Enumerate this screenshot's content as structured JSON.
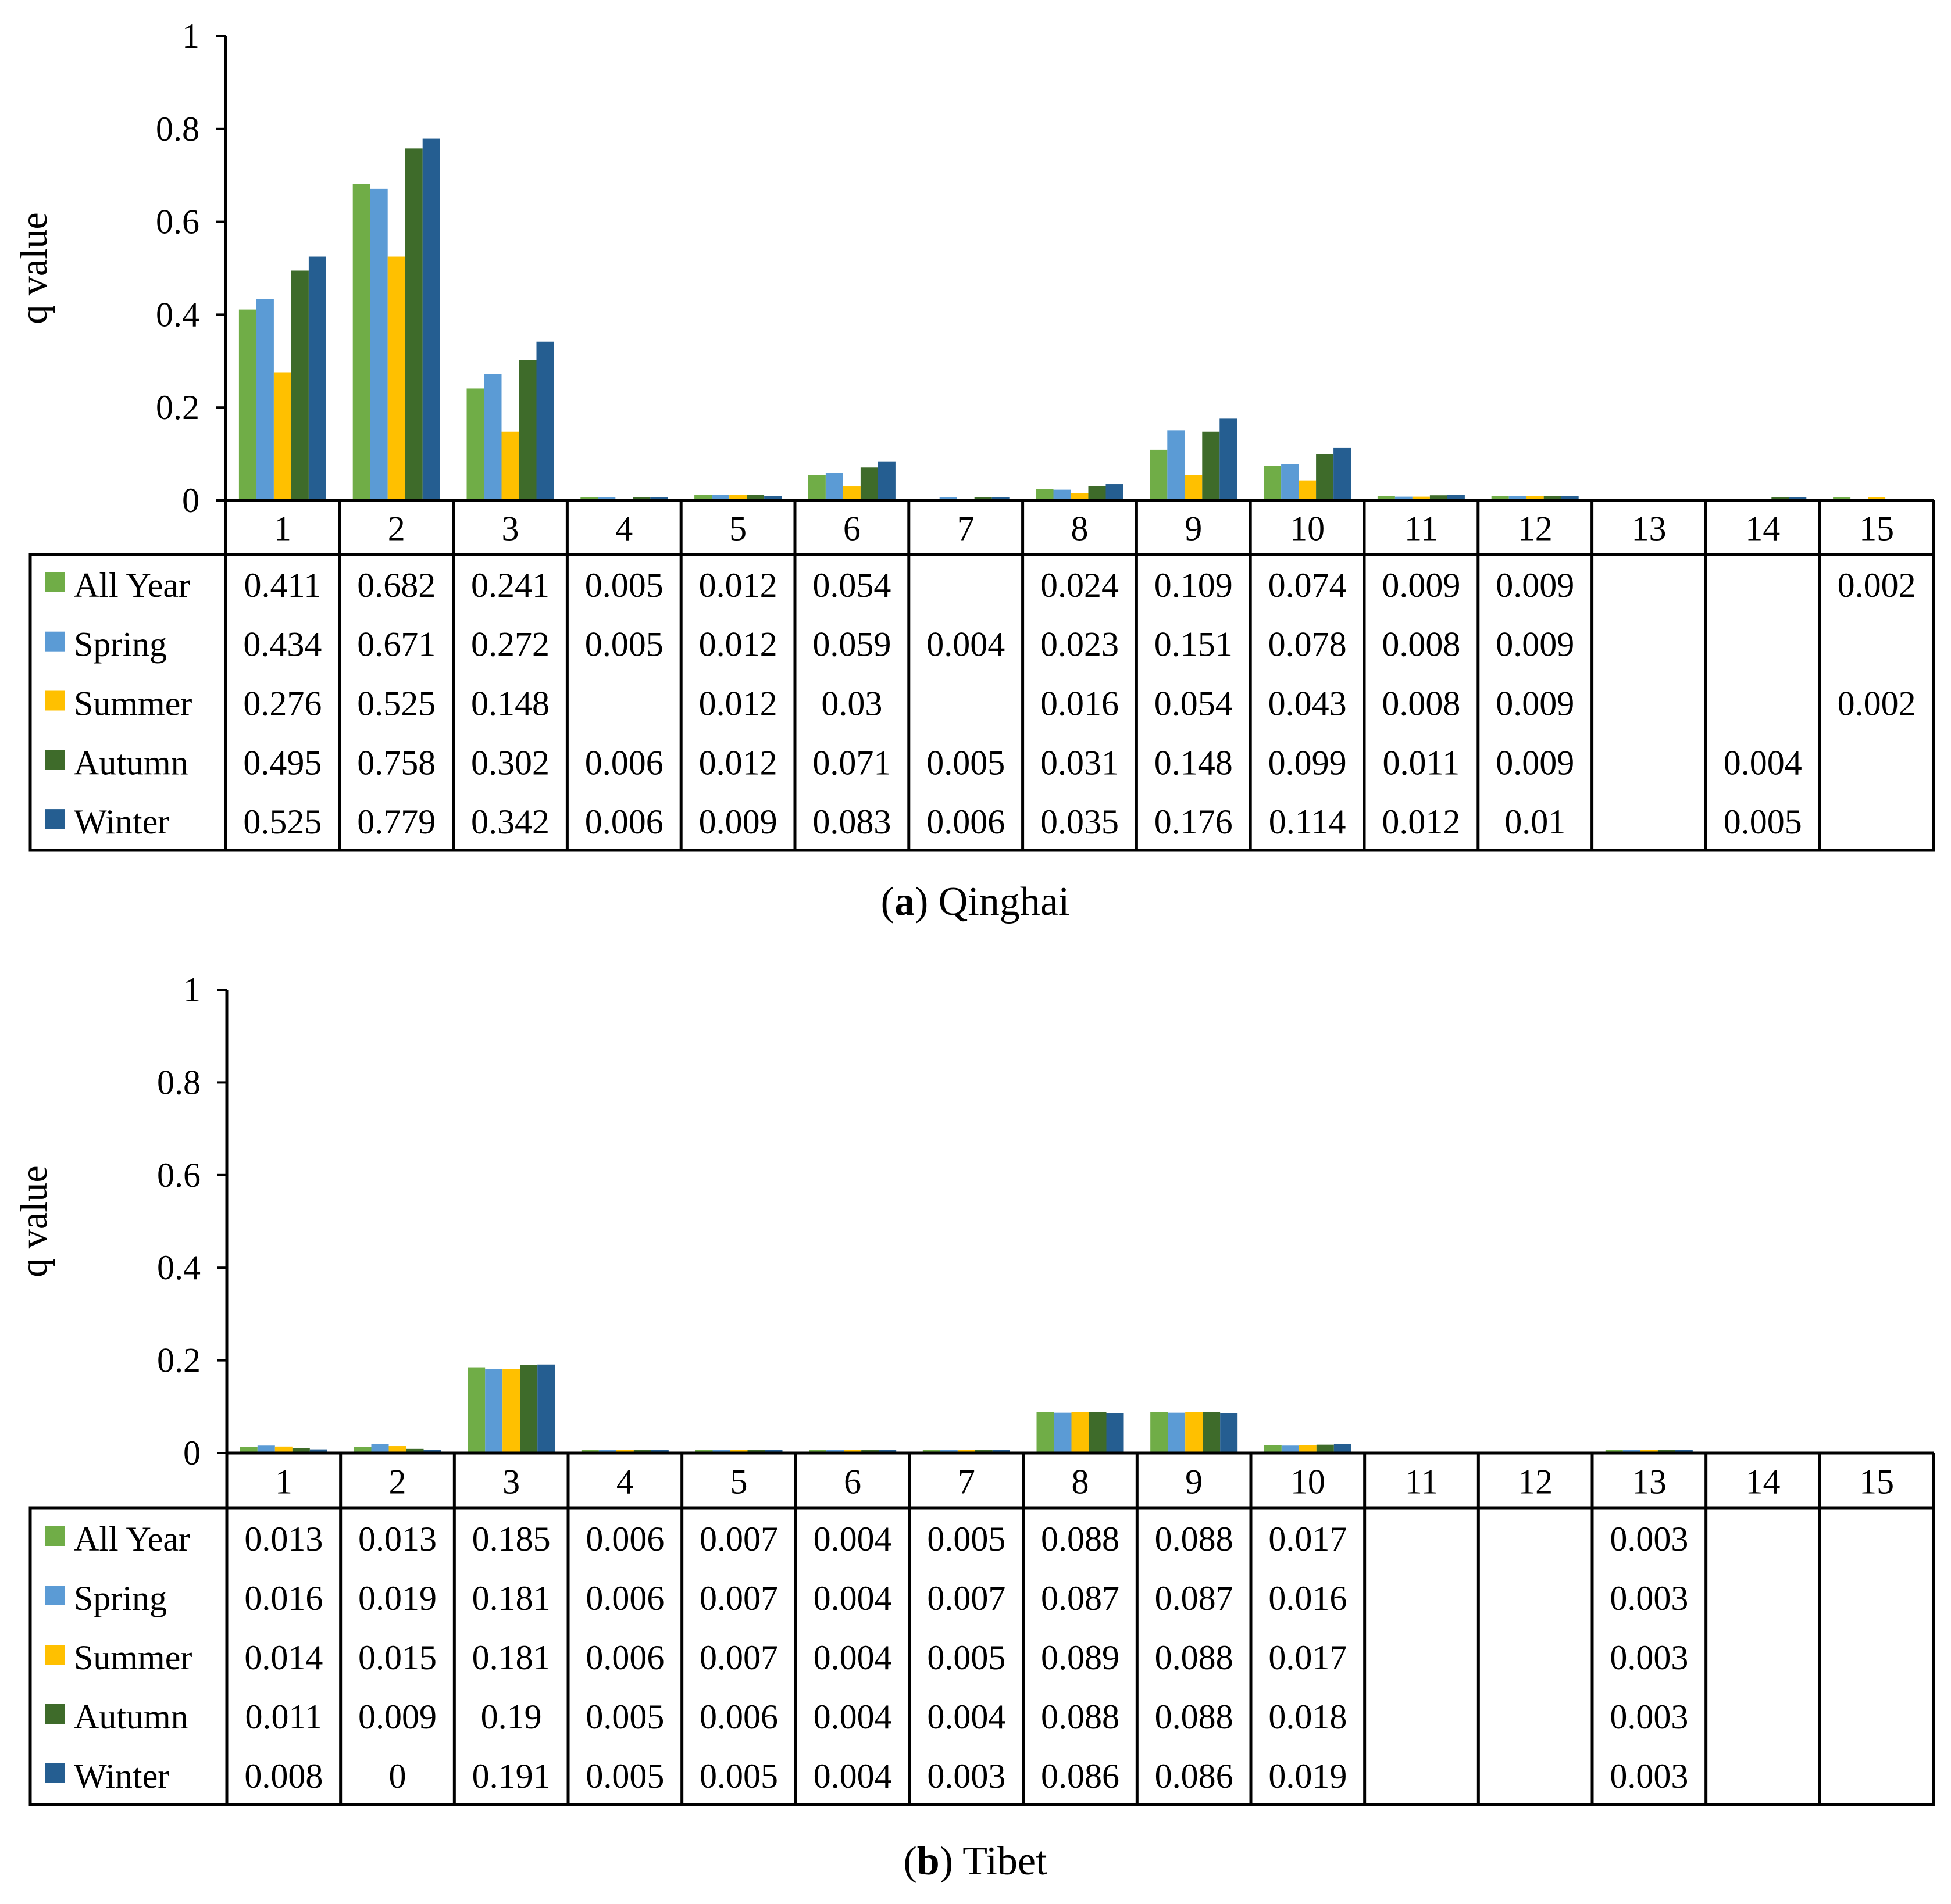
{
  "chart_data": [
    {
      "type": "bar",
      "panel": "a",
      "caption_letter": "a",
      "caption_text": "Qinghai",
      "ylabel": "q value",
      "ylim": [
        0,
        1
      ],
      "yticks": [
        "0",
        "0.2",
        "0.4",
        "0.6",
        "0.8",
        "1"
      ],
      "categories": [
        "1",
        "2",
        "3",
        "4",
        "5",
        "6",
        "7",
        "8",
        "9",
        "10",
        "11",
        "12",
        "13",
        "14",
        "15"
      ],
      "series": [
        {
          "name": "All Year",
          "color": "#70ad47",
          "values": [
            0.411,
            0.682,
            0.241,
            0.005,
            0.012,
            0.054,
            null,
            0.024,
            0.109,
            0.074,
            0.009,
            0.009,
            null,
            null,
            0.002
          ]
        },
        {
          "name": "Spring",
          "color": "#5b9bd5",
          "values": [
            0.434,
            0.671,
            0.272,
            0.005,
            0.012,
            0.059,
            0.004,
            0.023,
            0.151,
            0.078,
            0.008,
            0.009,
            null,
            null,
            null
          ]
        },
        {
          "name": "Summer",
          "color": "#ffc000",
          "values": [
            0.276,
            0.525,
            0.148,
            null,
            0.012,
            0.03,
            null,
            0.016,
            0.054,
            0.043,
            0.008,
            0.009,
            null,
            null,
            0.002
          ]
        },
        {
          "name": "Autumn",
          "color": "#3e6b2a",
          "values": [
            0.495,
            0.758,
            0.302,
            0.006,
            0.012,
            0.071,
            0.005,
            0.031,
            0.148,
            0.099,
            0.011,
            0.009,
            null,
            0.004,
            null
          ]
        },
        {
          "name": "Winter",
          "color": "#255e91",
          "values": [
            0.525,
            0.779,
            0.342,
            0.006,
            0.009,
            0.083,
            0.006,
            0.035,
            0.176,
            0.114,
            0.012,
            0.01,
            null,
            0.005,
            null
          ]
        }
      ]
    },
    {
      "type": "bar",
      "panel": "b",
      "caption_letter": "b",
      "caption_text": "Tibet",
      "ylabel": "q value",
      "ylim": [
        0,
        1
      ],
      "yticks": [
        "0",
        "0.2",
        "0.4",
        "0.6",
        "0.8",
        "1"
      ],
      "categories": [
        "1",
        "2",
        "3",
        "4",
        "5",
        "6",
        "7",
        "8",
        "9",
        "10",
        "11",
        "12",
        "13",
        "14",
        "15"
      ],
      "series": [
        {
          "name": "All Year",
          "color": "#70ad47",
          "values": [
            0.013,
            0.013,
            0.185,
            0.006,
            0.007,
            0.004,
            0.005,
            0.088,
            0.088,
            0.017,
            null,
            null,
            0.003,
            null,
            null
          ]
        },
        {
          "name": "Spring",
          "color": "#5b9bd5",
          "values": [
            0.016,
            0.019,
            0.181,
            0.006,
            0.007,
            0.004,
            0.007,
            0.087,
            0.087,
            0.016,
            null,
            null,
            0.003,
            null,
            null
          ]
        },
        {
          "name": "Summer",
          "color": "#ffc000",
          "values": [
            0.014,
            0.015,
            0.181,
            0.006,
            0.007,
            0.004,
            0.005,
            0.089,
            0.088,
            0.017,
            null,
            null,
            0.003,
            null,
            null
          ]
        },
        {
          "name": "Autumn",
          "color": "#3e6b2a",
          "values": [
            0.011,
            0.009,
            0.19,
            0.005,
            0.006,
            0.004,
            0.004,
            0.088,
            0.088,
            0.018,
            null,
            null,
            0.003,
            null,
            null
          ]
        },
        {
          "name": "Winter",
          "color": "#255e91",
          "values": [
            0.008,
            0,
            0.191,
            0.005,
            0.005,
            0.004,
            0.003,
            0.086,
            0.086,
            0.019,
            null,
            null,
            0.003,
            null,
            null
          ]
        }
      ]
    }
  ]
}
